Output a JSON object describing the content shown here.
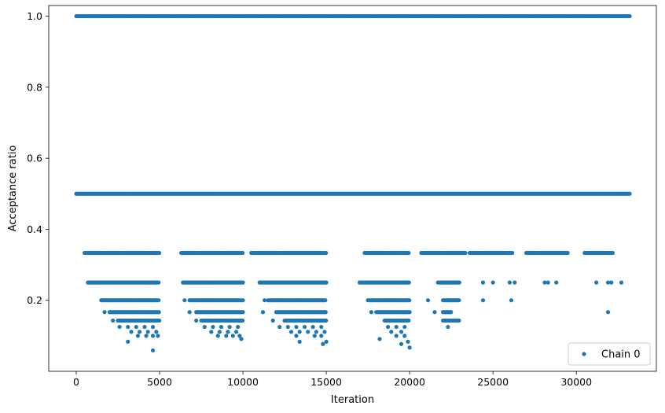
{
  "chart_data": {
    "type": "scatter",
    "xlabel": "Iteration",
    "ylabel": "Acceptance ratio",
    "xlim": [
      -1650,
      34800
    ],
    "ylim": [
      0.0,
      1.03
    ],
    "xticks": [
      0,
      5000,
      10000,
      15000,
      20000,
      25000,
      30000
    ],
    "yticks": [
      0.2,
      0.4,
      0.6,
      0.8,
      1.0
    ],
    "xtick_labels": [
      "0",
      "5000",
      "10000",
      "15000",
      "20000",
      "25000",
      "30000"
    ],
    "ytick_labels": [
      "0.2",
      "0.4",
      "0.6",
      "0.8",
      "1.0"
    ],
    "grid": false,
    "legend_position": "bottom-right",
    "color": "#1f77b4",
    "series": [
      {
        "name": "Chain 0",
        "marker": "dot",
        "bands": [
          {
            "y": 1.0,
            "ranges": [
              [
                0,
                33200
              ]
            ]
          },
          {
            "y": 0.5,
            "ranges": [
              [
                0,
                33200
              ]
            ]
          },
          {
            "y": 0.3333,
            "ranges": [
              [
                500,
                5000
              ],
              [
                6300,
                10000
              ],
              [
                10500,
                15000
              ],
              [
                17300,
                20000
              ],
              [
                20700,
                23400
              ],
              [
                23600,
                26200
              ],
              [
                27000,
                29500
              ],
              [
                30500,
                32200
              ]
            ]
          },
          {
            "y": 0.25,
            "ranges": [
              [
                700,
                5000
              ],
              [
                6400,
                10000
              ],
              [
                11000,
                15000
              ],
              [
                17000,
                20000
              ],
              [
                21700,
                23000
              ]
            ]
          },
          {
            "y": 0.2,
            "ranges": [
              [
                1500,
                5000
              ],
              [
                6800,
                10000
              ],
              [
                11500,
                15000
              ],
              [
                17500,
                20000
              ],
              [
                22000,
                23000
              ]
            ]
          },
          {
            "y": 0.1667,
            "ranges": [
              [
                2000,
                5000
              ],
              [
                7200,
                10000
              ],
              [
                12000,
                15000
              ],
              [
                18000,
                20000
              ],
              [
                22000,
                22500
              ]
            ]
          },
          {
            "y": 0.1429,
            "ranges": [
              [
                2500,
                5000
              ],
              [
                7500,
                10000
              ],
              [
                12500,
                15000
              ],
              [
                18500,
                20000
              ],
              [
                22000,
                23000
              ]
            ]
          }
        ],
        "points": [
          {
            "x": 24400,
            "y": 0.25
          },
          {
            "x": 25000,
            "y": 0.25
          },
          {
            "x": 26000,
            "y": 0.25
          },
          {
            "x": 26300,
            "y": 0.25
          },
          {
            "x": 28100,
            "y": 0.25
          },
          {
            "x": 28300,
            "y": 0.25
          },
          {
            "x": 28800,
            "y": 0.25
          },
          {
            "x": 31200,
            "y": 0.25
          },
          {
            "x": 31900,
            "y": 0.25
          },
          {
            "x": 32100,
            "y": 0.25
          },
          {
            "x": 32700,
            "y": 0.25
          },
          {
            "x": 6500,
            "y": 0.2
          },
          {
            "x": 11300,
            "y": 0.2
          },
          {
            "x": 21100,
            "y": 0.2
          },
          {
            "x": 24400,
            "y": 0.2
          },
          {
            "x": 26100,
            "y": 0.2
          },
          {
            "x": 1700,
            "y": 0.1667
          },
          {
            "x": 6800,
            "y": 0.1667
          },
          {
            "x": 11200,
            "y": 0.1667
          },
          {
            "x": 17700,
            "y": 0.1667
          },
          {
            "x": 21500,
            "y": 0.1667
          },
          {
            "x": 31900,
            "y": 0.1667
          },
          {
            "x": 2200,
            "y": 0.1429
          },
          {
            "x": 7200,
            "y": 0.1429
          },
          {
            "x": 11800,
            "y": 0.1429
          },
          {
            "x": 2600,
            "y": 0.125
          },
          {
            "x": 3100,
            "y": 0.125
          },
          {
            "x": 3600,
            "y": 0.125
          },
          {
            "x": 4100,
            "y": 0.125
          },
          {
            "x": 4600,
            "y": 0.125
          },
          {
            "x": 7700,
            "y": 0.125
          },
          {
            "x": 8200,
            "y": 0.125
          },
          {
            "x": 8700,
            "y": 0.125
          },
          {
            "x": 9200,
            "y": 0.125
          },
          {
            "x": 9700,
            "y": 0.125
          },
          {
            "x": 12200,
            "y": 0.125
          },
          {
            "x": 12700,
            "y": 0.125
          },
          {
            "x": 13200,
            "y": 0.125
          },
          {
            "x": 13700,
            "y": 0.125
          },
          {
            "x": 14200,
            "y": 0.125
          },
          {
            "x": 14700,
            "y": 0.125
          },
          {
            "x": 18700,
            "y": 0.125
          },
          {
            "x": 19200,
            "y": 0.125
          },
          {
            "x": 19700,
            "y": 0.125
          },
          {
            "x": 22300,
            "y": 0.125
          },
          {
            "x": 3300,
            "y": 0.1111
          },
          {
            "x": 3800,
            "y": 0.1111
          },
          {
            "x": 4300,
            "y": 0.1111
          },
          {
            "x": 4800,
            "y": 0.1111
          },
          {
            "x": 8100,
            "y": 0.1111
          },
          {
            "x": 8600,
            "y": 0.1111
          },
          {
            "x": 9100,
            "y": 0.1111
          },
          {
            "x": 9600,
            "y": 0.1111
          },
          {
            "x": 12900,
            "y": 0.1111
          },
          {
            "x": 13400,
            "y": 0.1111
          },
          {
            "x": 13900,
            "y": 0.1111
          },
          {
            "x": 14400,
            "y": 0.1111
          },
          {
            "x": 14900,
            "y": 0.1111
          },
          {
            "x": 18900,
            "y": 0.1111
          },
          {
            "x": 19500,
            "y": 0.1111
          },
          {
            "x": 3700,
            "y": 0.1
          },
          {
            "x": 4200,
            "y": 0.1
          },
          {
            "x": 4600,
            "y": 0.1
          },
          {
            "x": 4900,
            "y": 0.1
          },
          {
            "x": 8500,
            "y": 0.1
          },
          {
            "x": 9000,
            "y": 0.1
          },
          {
            "x": 9400,
            "y": 0.1
          },
          {
            "x": 9800,
            "y": 0.1
          },
          {
            "x": 13200,
            "y": 0.1
          },
          {
            "x": 14300,
            "y": 0.1
          },
          {
            "x": 14700,
            "y": 0.1
          },
          {
            "x": 19200,
            "y": 0.1
          },
          {
            "x": 19700,
            "y": 0.1
          },
          {
            "x": 3100,
            "y": 0.0833
          },
          {
            "x": 9900,
            "y": 0.0909
          },
          {
            "x": 13400,
            "y": 0.0833
          },
          {
            "x": 14800,
            "y": 0.0769
          },
          {
            "x": 15000,
            "y": 0.0833
          },
          {
            "x": 18200,
            "y": 0.0909
          },
          {
            "x": 19500,
            "y": 0.0769
          },
          {
            "x": 19900,
            "y": 0.0833
          },
          {
            "x": 20000,
            "y": 0.0667
          },
          {
            "x": 4600,
            "y": 0.0588
          }
        ]
      }
    ]
  }
}
